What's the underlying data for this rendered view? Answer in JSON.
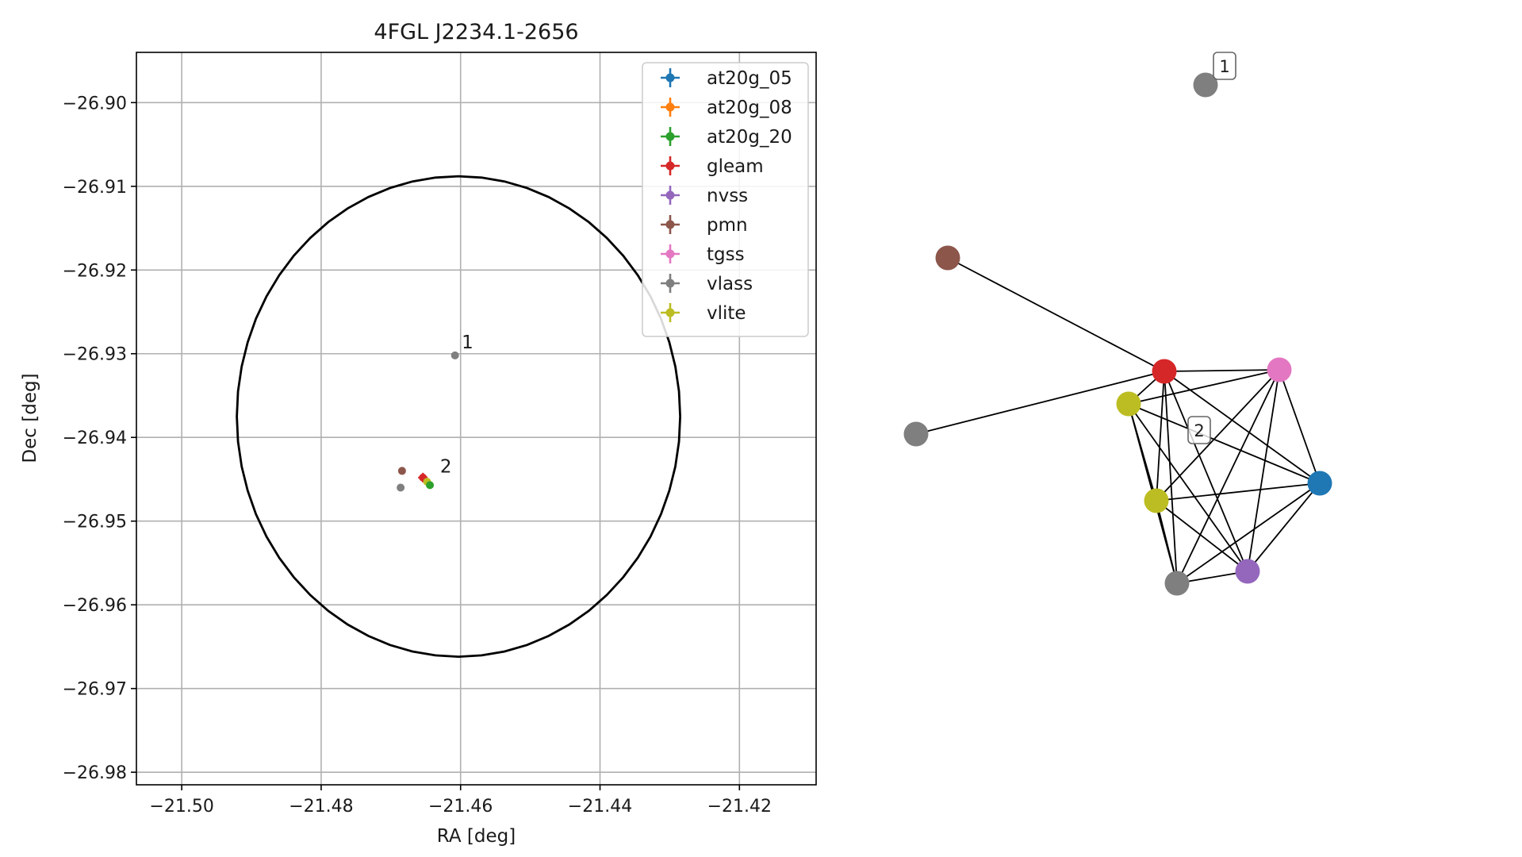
{
  "chart_data": [
    {
      "type": "scatter",
      "title": "4FGL J2234.1-2656",
      "xlabel": "RA [deg]",
      "ylabel": "Dec [deg]",
      "xlim": [
        -21.5065,
        -21.409
      ],
      "ylim": [
        -26.9815,
        -26.894
      ],
      "xticks": [
        -21.5,
        -21.48,
        -21.46,
        -21.44,
        -21.42
      ],
      "xtick_labels": [
        "−21.50",
        "−21.48",
        "−21.46",
        "−21.44",
        "−21.42"
      ],
      "yticks": [
        -26.9,
        -26.91,
        -26.92,
        -26.93,
        -26.94,
        -26.95,
        -26.96,
        -26.97,
        -26.98
      ],
      "ytick_labels": [
        "−26.90",
        "−26.91",
        "−26.92",
        "−26.93",
        "−26.94",
        "−26.95",
        "−26.96",
        "−26.97",
        "−26.98"
      ],
      "grid": true,
      "legend_position": "top-right",
      "legend": [
        "at20g_05",
        "at20g_08",
        "at20g_20",
        "gleam",
        "nvss",
        "pmn",
        "tgss",
        "vlass",
        "vlite"
      ],
      "colors": {
        "at20g_05": "#1f77b4",
        "at20g_08": "#ff7f0e",
        "at20g_20": "#2ca02c",
        "gleam": "#d62728",
        "nvss": "#9467bd",
        "pmn": "#8c564b",
        "tgss": "#e377c2",
        "vlass": "#7f7f7f",
        "vlite": "#bcbd22"
      },
      "ellipse": {
        "center": [
          -21.4603,
          -26.9375
        ],
        "semi_axes_deg": [
          0.0318,
          0.0287
        ]
      },
      "points": [
        {
          "series": "vlass",
          "x": -21.4608,
          "y": -26.9302,
          "err": "none"
        },
        {
          "series": "pmn",
          "x": -21.4684,
          "y": -26.944,
          "err": "none"
        },
        {
          "series": "vlass",
          "x": -21.4686,
          "y": -26.946,
          "err": "none"
        },
        {
          "series": "gleam",
          "x": -21.4654,
          "y": -26.9448,
          "err": "cross"
        },
        {
          "series": "vlite",
          "x": -21.4648,
          "y": -26.9453,
          "err": "small"
        },
        {
          "series": "at20g_20",
          "x": -21.4644,
          "y": -26.9457,
          "err": "small"
        }
      ],
      "annotations": [
        {
          "text": "1",
          "x": -21.4603,
          "y": -26.929
        },
        {
          "text": "2",
          "x": -21.4634,
          "y": -26.9438
        }
      ]
    },
    {
      "type": "network",
      "nodes": [
        {
          "id": "vlass_1",
          "series": "vlass",
          "label": "1"
        },
        {
          "id": "pmn",
          "series": "pmn",
          "label": ""
        },
        {
          "id": "vlass_2",
          "series": "vlass",
          "label": ""
        },
        {
          "id": "gleam",
          "series": "gleam",
          "label": ""
        },
        {
          "id": "tgss",
          "series": "tgss",
          "label": ""
        },
        {
          "id": "vlite_a",
          "series": "vlite",
          "label": ""
        },
        {
          "id": "vlite_b",
          "series": "vlite",
          "label": ""
        },
        {
          "id": "at20g_05",
          "series": "at20g_05",
          "label": ""
        },
        {
          "id": "vlass_3",
          "series": "vlass",
          "label": ""
        },
        {
          "id": "nvss",
          "series": "nvss",
          "label": ""
        }
      ],
      "group_labels": [
        "1",
        "2"
      ],
      "edges": [
        [
          "pmn",
          "gleam"
        ],
        [
          "vlass_2",
          "gleam"
        ],
        [
          "gleam",
          "tgss"
        ],
        [
          "gleam",
          "vlite_a"
        ],
        [
          "gleam",
          "vlite_b"
        ],
        [
          "gleam",
          "at20g_05"
        ],
        [
          "gleam",
          "vlass_3"
        ],
        [
          "gleam",
          "nvss"
        ],
        [
          "tgss",
          "vlite_a"
        ],
        [
          "tgss",
          "vlite_b"
        ],
        [
          "tgss",
          "at20g_05"
        ],
        [
          "tgss",
          "vlass_3"
        ],
        [
          "tgss",
          "nvss"
        ],
        [
          "vlite_a",
          "vlite_b"
        ],
        [
          "vlite_a",
          "at20g_05"
        ],
        [
          "vlite_a",
          "vlass_3"
        ],
        [
          "vlite_a",
          "nvss"
        ],
        [
          "vlite_b",
          "at20g_05"
        ],
        [
          "vlite_b",
          "vlass_3"
        ],
        [
          "vlite_b",
          "nvss"
        ],
        [
          "at20g_05",
          "vlass_3"
        ],
        [
          "at20g_05",
          "nvss"
        ],
        [
          "vlass_3",
          "nvss"
        ]
      ]
    }
  ]
}
